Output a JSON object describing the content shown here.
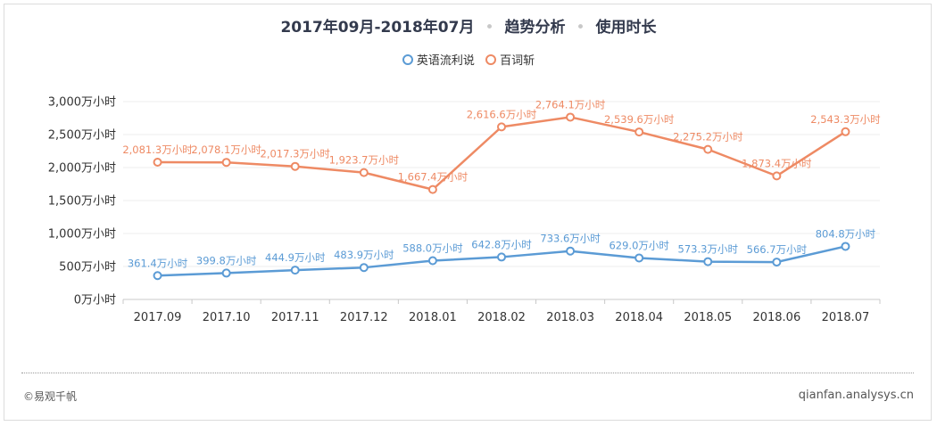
{
  "header": {
    "title_period": "2017年09月-2018年07月",
    "title_type": "趋势分析",
    "title_metric": "使用时长",
    "separator": "•"
  },
  "footer": {
    "copyright": "©易观千帆",
    "site": "qianfan.analysys.cn"
  },
  "chart_data": {
    "type": "line",
    "unit": "万小时",
    "categories": [
      "2017.09",
      "2017.10",
      "2017.11",
      "2017.12",
      "2018.01",
      "2018.02",
      "2018.03",
      "2018.04",
      "2018.05",
      "2018.06",
      "2018.07"
    ],
    "y_ticks": [
      0,
      500,
      1000,
      1500,
      2000,
      2500,
      3000
    ],
    "y_tick_labels": [
      "0万小时",
      "500万小时",
      "1,000万小时",
      "1,500万小时",
      "2,000万小时",
      "2,500万小时",
      "3,000万小时"
    ],
    "ylim": [
      0,
      3000
    ],
    "grid": true,
    "legend_position": "top-center",
    "series": [
      {
        "name": "英语流利说",
        "color": "#5b9bd5",
        "values": [
          361.4,
          399.8,
          444.9,
          483.9,
          588.0,
          642.8,
          733.6,
          629.0,
          573.3,
          566.7,
          804.8
        ],
        "labels": [
          "361.4万小时",
          "399.8万小时",
          "444.9万小时",
          "483.9万小时",
          "588.0万小时",
          "642.8万小时",
          "733.6万小时",
          "629.0万小时",
          "573.3万小时",
          "566.7万小时",
          "804.8万小时"
        ]
      },
      {
        "name": "百词斩",
        "color": "#ee8a64",
        "values": [
          2081.3,
          2078.1,
          2017.3,
          1923.7,
          1667.4,
          2616.6,
          2764.1,
          2539.6,
          2275.2,
          1873.4,
          2543.3
        ],
        "labels": [
          "2,081.3万小时",
          "2,078.1万小时",
          "2,017.3万小时",
          "1,923.7万小时",
          "1,667.4万小时",
          "2,616.6万小时",
          "2,764.1万小时",
          "2,539.6万小时",
          "2,275.2万小时",
          "1,873.4万小时",
          "2,543.3万小时"
        ]
      }
    ]
  }
}
